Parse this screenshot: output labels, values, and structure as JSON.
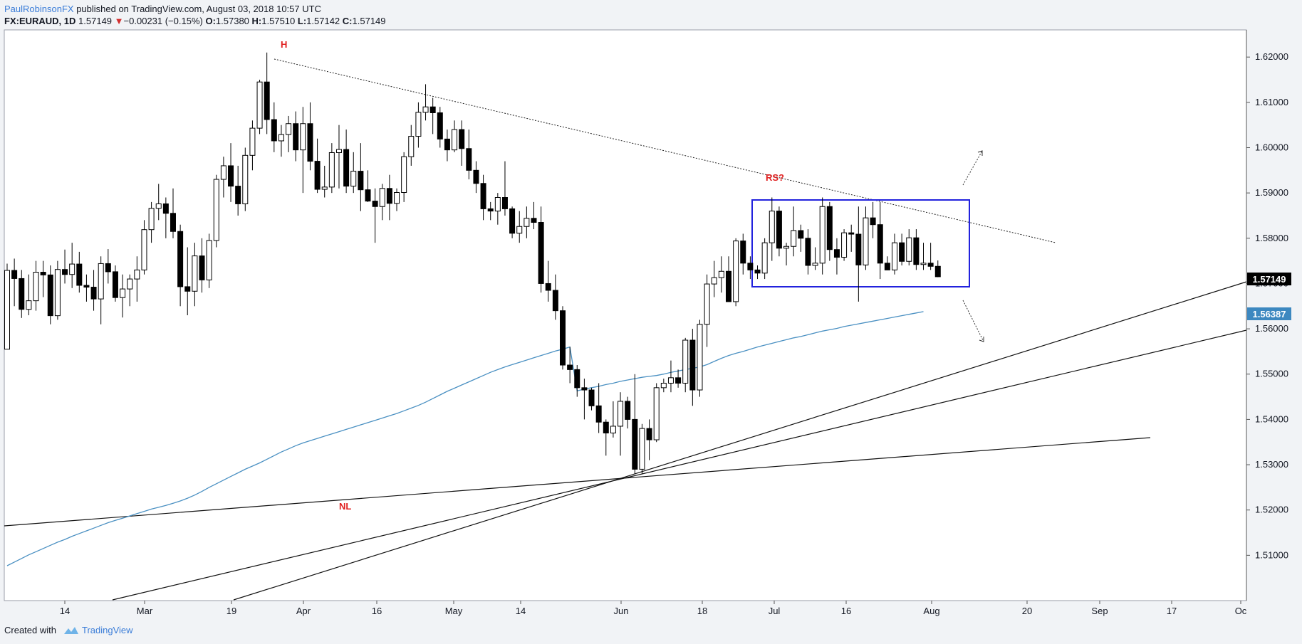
{
  "header": {
    "author": "PaulRobinsonFX",
    "published_text": "published on TradingView.com, August 03, 2018 10:57 UTC",
    "symbol": "FX:EURAUD, 1D",
    "last": "1.57149",
    "change_arrow": "▼",
    "change": "−0.00231 (−0.15%)",
    "open_label": "O:",
    "open": "1.57380",
    "high_label": "H:",
    "high": "1.57510",
    "low_label": "L:",
    "low": "1.57142",
    "close_label": "C:",
    "close": "1.57149"
  },
  "footer": {
    "created_with": "Created with",
    "brand": "TradingView"
  },
  "colors": {
    "up_body": "#ffffff",
    "down_body": "#000000",
    "candle_border": "#000000",
    "ma": "#4a90c2",
    "box": "#2222dd",
    "annotation": "#e02020",
    "price_tag": "#000000",
    "ma_tag": "#3d88c0"
  },
  "chart_data": {
    "type": "candlestick",
    "symbol": "FX:EURAUD",
    "timeframe": "1D",
    "x_ticks": [
      "14",
      "Mar",
      "19",
      "Apr",
      "16",
      "May",
      "14",
      "Jun",
      "18",
      "Jul",
      "16",
      "Aug",
      "20",
      "Sep",
      "17",
      "Oc"
    ],
    "y_ticks": [
      "1.62000",
      "1.61000",
      "1.60000",
      "1.59000",
      "1.58000",
      "1.57000",
      "1.56000",
      "1.55000",
      "1.54000",
      "1.53000",
      "1.52000",
      "1.51000"
    ],
    "ylim": [
      1.5,
      1.626
    ],
    "last_price_label": "1.57149",
    "ma_label": "1.56387",
    "annotations": [
      "H",
      "RS?",
      "NL"
    ],
    "ohlc": [
      [
        1.5555,
        1.5744,
        1.5555,
        1.5729
      ],
      [
        1.5729,
        1.5755,
        1.565,
        1.5711
      ],
      [
        1.5711,
        1.573,
        1.5624,
        1.5643
      ],
      [
        1.5643,
        1.572,
        1.563,
        1.5662
      ],
      [
        1.5662,
        1.575,
        1.564,
        1.5725
      ],
      [
        1.5725,
        1.575,
        1.567,
        1.5719
      ],
      [
        1.5719,
        1.574,
        1.561,
        1.5629
      ],
      [
        1.5629,
        1.575,
        1.562,
        1.5731
      ],
      [
        1.5731,
        1.5775,
        1.57,
        1.572
      ],
      [
        1.572,
        1.579,
        1.569,
        1.5743
      ],
      [
        1.5743,
        1.577,
        1.568,
        1.5696
      ],
      [
        1.5696,
        1.572,
        1.566,
        1.5692
      ],
      [
        1.5692,
        1.573,
        1.564,
        1.5666
      ],
      [
        1.5666,
        1.576,
        1.561,
        1.5744
      ],
      [
        1.5744,
        1.5776,
        1.57,
        1.5726
      ],
      [
        1.5726,
        1.574,
        1.566,
        1.5669
      ],
      [
        1.5669,
        1.572,
        1.5625,
        1.5688
      ],
      [
        1.5688,
        1.572,
        1.565,
        1.571
      ],
      [
        1.571,
        1.576,
        1.566,
        1.573
      ],
      [
        1.573,
        1.584,
        1.572,
        1.5819
      ],
      [
        1.5819,
        1.588,
        1.579,
        1.5866
      ],
      [
        1.5866,
        1.592,
        1.584,
        1.5876
      ],
      [
        1.5876,
        1.589,
        1.58,
        1.5855
      ],
      [
        1.5855,
        1.591,
        1.58,
        1.5815
      ],
      [
        1.5815,
        1.583,
        1.565,
        1.5693
      ],
      [
        1.5693,
        1.578,
        1.563,
        1.5683
      ],
      [
        1.5683,
        1.579,
        1.565,
        1.5761
      ],
      [
        1.5761,
        1.58,
        1.568,
        1.5708
      ],
      [
        1.5708,
        1.581,
        1.569,
        1.5795
      ],
      [
        1.5795,
        1.594,
        1.578,
        1.593
      ],
      [
        1.593,
        1.598,
        1.589,
        1.596
      ],
      [
        1.596,
        1.601,
        1.588,
        1.5915
      ],
      [
        1.5915,
        1.596,
        1.585,
        1.5876
      ],
      [
        1.5876,
        1.6,
        1.586,
        1.5983
      ],
      [
        1.5983,
        1.606,
        1.595,
        1.6043
      ],
      [
        1.6043,
        1.615,
        1.603,
        1.6145
      ],
      [
        1.6145,
        1.621,
        1.603,
        1.6062
      ],
      [
        1.6062,
        1.61,
        1.599,
        1.6015
      ],
      [
        1.6015,
        1.605,
        1.598,
        1.6029
      ],
      [
        1.6029,
        1.607,
        1.599,
        1.6053
      ],
      [
        1.6053,
        1.608,
        1.597,
        1.5995
      ],
      [
        1.5995,
        1.609,
        1.59,
        1.6053
      ],
      [
        1.6053,
        1.61,
        1.595,
        1.597
      ],
      [
        1.597,
        1.602,
        1.59,
        1.5908
      ],
      [
        1.5908,
        1.596,
        1.589,
        1.5913
      ],
      [
        1.5913,
        1.601,
        1.59,
        1.5989
      ],
      [
        1.5989,
        1.605,
        1.591,
        1.5996
      ],
      [
        1.5996,
        1.604,
        1.59,
        1.5915
      ],
      [
        1.5915,
        1.599,
        1.59,
        1.5948
      ],
      [
        1.5948,
        1.601,
        1.586,
        1.5907
      ],
      [
        1.5907,
        1.595,
        1.588,
        1.5882
      ],
      [
        1.5882,
        1.591,
        1.579,
        1.587
      ],
      [
        1.587,
        1.592,
        1.584,
        1.591
      ],
      [
        1.591,
        1.594,
        1.584,
        1.5877
      ],
      [
        1.5877,
        1.591,
        1.586,
        1.5901
      ],
      [
        1.5901,
        1.599,
        1.588,
        1.598
      ],
      [
        1.598,
        1.605,
        1.596,
        1.6025
      ],
      [
        1.6025,
        1.61,
        1.6,
        1.6078
      ],
      [
        1.6078,
        1.614,
        1.606,
        1.609
      ],
      [
        1.609,
        1.611,
        1.603,
        1.6077
      ],
      [
        1.6077,
        1.609,
        1.6,
        1.6019
      ],
      [
        1.6019,
        1.604,
        1.597,
        1.5995
      ],
      [
        1.5995,
        1.606,
        1.599,
        1.604
      ],
      [
        1.604,
        1.606,
        1.596,
        1.5998
      ],
      [
        1.5998,
        1.604,
        1.593,
        1.595
      ],
      [
        1.595,
        1.597,
        1.59,
        1.5921
      ],
      [
        1.5921,
        1.594,
        1.584,
        1.5865
      ],
      [
        1.5865,
        1.588,
        1.584,
        1.586
      ],
      [
        1.586,
        1.59,
        1.583,
        1.589
      ],
      [
        1.589,
        1.597,
        1.585,
        1.5865
      ],
      [
        1.5865,
        1.587,
        1.58,
        1.5811
      ],
      [
        1.5811,
        1.586,
        1.579,
        1.5826
      ],
      [
        1.5826,
        1.587,
        1.58,
        1.5844
      ],
      [
        1.5844,
        1.588,
        1.582,
        1.5835
      ],
      [
        1.5835,
        1.587,
        1.568,
        1.57
      ],
      [
        1.57,
        1.575,
        1.566,
        1.5685
      ],
      [
        1.5685,
        1.572,
        1.562,
        1.564
      ],
      [
        1.564,
        1.565,
        1.551,
        1.552
      ],
      [
        1.552,
        1.556,
        1.548,
        1.551
      ],
      [
        1.551,
        1.552,
        1.545,
        1.547
      ],
      [
        1.547,
        1.549,
        1.54,
        1.5465
      ],
      [
        1.5465,
        1.547,
        1.542,
        1.543
      ],
      [
        1.543,
        1.548,
        1.537,
        1.5394
      ],
      [
        1.5394,
        1.54,
        1.532,
        1.537
      ],
      [
        1.537,
        1.544,
        1.536,
        1.5385
      ],
      [
        1.5385,
        1.546,
        1.532,
        1.544
      ],
      [
        1.544,
        1.545,
        1.538,
        1.54
      ],
      [
        1.54,
        1.55,
        1.528,
        1.529
      ],
      [
        1.529,
        1.539,
        1.528,
        1.538
      ],
      [
        1.538,
        1.54,
        1.531,
        1.5355
      ],
      [
        1.5355,
        1.548,
        1.535,
        1.547
      ],
      [
        1.547,
        1.549,
        1.546,
        1.548
      ],
      [
        1.548,
        1.553,
        1.546,
        1.5492
      ],
      [
        1.5492,
        1.551,
        1.547,
        1.548
      ],
      [
        1.548,
        1.558,
        1.546,
        1.5575
      ],
      [
        1.5575,
        1.56,
        1.543,
        1.5465
      ],
      [
        1.5465,
        1.562,
        1.545,
        1.561
      ],
      [
        1.561,
        1.572,
        1.556,
        1.5699
      ],
      [
        1.5699,
        1.575,
        1.567,
        1.5713
      ],
      [
        1.5713,
        1.576,
        1.568,
        1.5727
      ],
      [
        1.5727,
        1.576,
        1.566,
        1.566
      ],
      [
        1.566,
        1.58,
        1.565,
        1.5794
      ],
      [
        1.5794,
        1.581,
        1.572,
        1.5745
      ],
      [
        1.5745,
        1.576,
        1.571,
        1.573
      ],
      [
        1.573,
        1.574,
        1.571,
        1.5723
      ],
      [
        1.5723,
        1.58,
        1.571,
        1.579
      ],
      [
        1.579,
        1.589,
        1.575,
        1.586
      ],
      [
        1.586,
        1.587,
        1.576,
        1.5778
      ],
      [
        1.5778,
        1.579,
        1.574,
        1.5782
      ],
      [
        1.5782,
        1.587,
        1.576,
        1.5817
      ],
      [
        1.5817,
        1.583,
        1.577,
        1.58
      ],
      [
        1.58,
        1.582,
        1.572,
        1.574
      ],
      [
        1.574,
        1.578,
        1.573,
        1.5745
      ],
      [
        1.5745,
        1.589,
        1.572,
        1.587
      ],
      [
        1.587,
        1.588,
        1.575,
        1.5775
      ],
      [
        1.5775,
        1.58,
        1.572,
        1.5758
      ],
      [
        1.5758,
        1.582,
        1.575,
        1.5812
      ],
      [
        1.5812,
        1.583,
        1.577,
        1.5809
      ],
      [
        1.5809,
        1.587,
        1.566,
        1.5741
      ],
      [
        1.5741,
        1.587,
        1.573,
        1.5845
      ],
      [
        1.5845,
        1.588,
        1.58,
        1.583
      ],
      [
        1.583,
        1.588,
        1.571,
        1.5745
      ],
      [
        1.5745,
        1.576,
        1.573,
        1.573
      ],
      [
        1.573,
        1.581,
        1.572,
        1.579
      ],
      [
        1.579,
        1.581,
        1.574,
        1.5749
      ],
      [
        1.5749,
        1.582,
        1.574,
        1.5801
      ],
      [
        1.5801,
        1.582,
        1.573,
        1.5742
      ],
      [
        1.5742,
        1.579,
        1.573,
        1.5745
      ],
      [
        1.5745,
        1.579,
        1.573,
        1.5738
      ],
      [
        1.5738,
        1.5751,
        1.5714,
        1.5715
      ]
    ],
    "ma_series": [
      1.5077,
      1.5085,
      1.5093,
      1.5101,
      1.5108,
      1.5115,
      1.5122,
      1.5129,
      1.5135,
      1.5142,
      1.5148,
      1.5154,
      1.516,
      1.5166,
      1.5172,
      1.5177,
      1.5182,
      1.5187,
      1.5192,
      1.5197,
      1.5202,
      1.5206,
      1.521,
      1.5215,
      1.522,
      1.5226,
      1.5233,
      1.5241,
      1.525,
      1.5258,
      1.5266,
      1.5274,
      1.5282,
      1.529,
      1.5297,
      1.5304,
      1.5312,
      1.532,
      1.5328,
      1.5335,
      1.5342,
      1.5348,
      1.5353,
      1.5358,
      1.5363,
      1.5368,
      1.5373,
      1.5378,
      1.5383,
      1.5388,
      1.5393,
      1.5398,
      1.5403,
      1.5408,
      1.5413,
      1.5419,
      1.5425,
      1.5431,
      1.5438,
      1.5446,
      1.5454,
      1.5462,
      1.5469,
      1.5476,
      1.5483,
      1.549,
      1.5497,
      1.5504,
      1.551,
      1.5516,
      1.5521,
      1.5526,
      1.5531,
      1.5536,
      1.5541,
      1.5546,
      1.5551,
      1.5555,
      1.556,
      1.5463,
      1.5467,
      1.547,
      1.5473,
      1.5477,
      1.548,
      1.5484,
      1.5487,
      1.549,
      1.5493,
      1.5495,
      1.5497,
      1.55,
      1.5504,
      1.5507,
      1.551,
      1.5513,
      1.5516,
      1.5521,
      1.5528,
      1.5535,
      1.5541,
      1.5546,
      1.555,
      1.5555,
      1.556,
      1.5564,
      1.5568,
      1.5572,
      1.5576,
      1.558,
      1.5583,
      1.5587,
      1.5591,
      1.5595,
      1.5598,
      1.5601,
      1.5605,
      1.5608,
      1.5611,
      1.5614,
      1.5617,
      1.562,
      1.5623,
      1.5626,
      1.5629,
      1.5632,
      1.5635,
      1.5638
    ]
  }
}
